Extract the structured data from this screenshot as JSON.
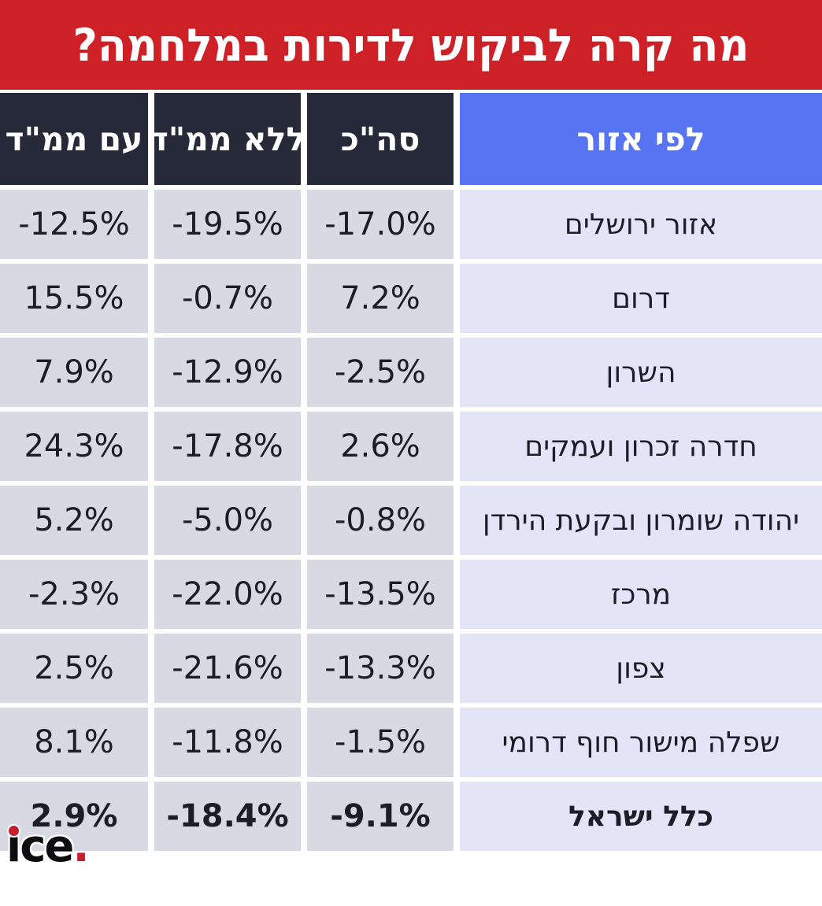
{
  "title": "מה קרה לביקוש לדירות במלחמה?",
  "colors": {
    "banner_red": "#ce2127",
    "header_dark": "#262a38",
    "header_blue": "#5673f2",
    "numeric_cell_bg": "#d9d9e3",
    "region_cell_bg": "#e3e4f6",
    "text_dark": "#1b1e28",
    "logo_red": "#c51f2b"
  },
  "logo": {
    "letters": "ice",
    "period": "."
  },
  "chart_data": {
    "type": "table",
    "title": "מה קרה לביקוש לדירות במלחמה?",
    "direction": "rtl",
    "columns": [
      "לפי אזור",
      "סה\"כ",
      "ללא ממ\"ד",
      "עם ממ\"ד"
    ],
    "rows": [
      {
        "region": "אזור ירושלים",
        "total": "-17.0%",
        "without_mamad": "-19.5%",
        "with_mamad": "-12.5%",
        "bold": false
      },
      {
        "region": "דרום",
        "total": "7.2%",
        "without_mamad": "-0.7%",
        "with_mamad": "15.5%",
        "bold": false
      },
      {
        "region": "השרון",
        "total": "-2.5%",
        "without_mamad": "-12.9%",
        "with_mamad": "7.9%",
        "bold": false
      },
      {
        "region": "חדרה זכרון ועמקים",
        "total": "2.6%",
        "without_mamad": "-17.8%",
        "with_mamad": "24.3%",
        "bold": false
      },
      {
        "region": "יהודה שומרון ובקעת הירדן",
        "total": "-0.8%",
        "without_mamad": "-5.0%",
        "with_mamad": "5.2%",
        "bold": false
      },
      {
        "region": "מרכז",
        "total": "-13.5%",
        "without_mamad": "-22.0%",
        "with_mamad": "-2.3%",
        "bold": false
      },
      {
        "region": "צפון",
        "total": "-13.3%",
        "without_mamad": "-21.6%",
        "with_mamad": "2.5%",
        "bold": false
      },
      {
        "region": "שפלה מישור חוף דרומי",
        "total": "-1.5%",
        "without_mamad": "-11.8%",
        "with_mamad": "8.1%",
        "bold": false
      },
      {
        "region": "כלל ישראל",
        "total": "-9.1%",
        "without_mamad": "-18.4%",
        "with_mamad": "2.9%",
        "bold": true
      }
    ]
  }
}
